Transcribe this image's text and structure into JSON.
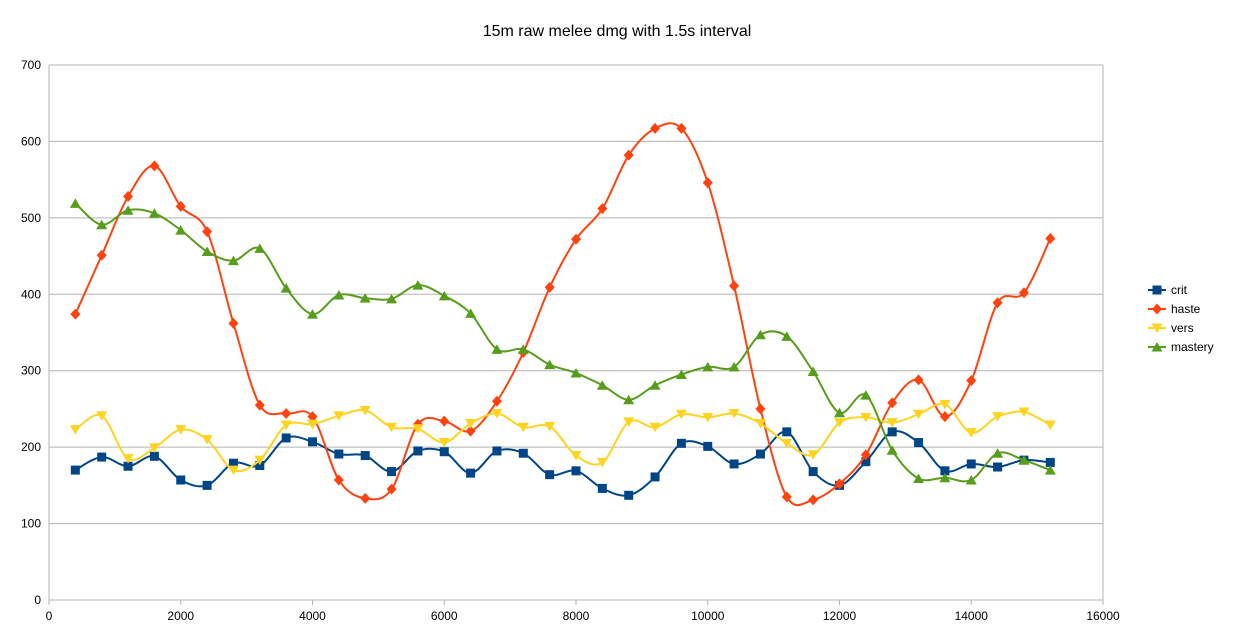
{
  "chart_data": {
    "type": "line",
    "title": "15m raw melee dmg with 1.5s interval",
    "xlabel": "",
    "ylabel": "",
    "xlim": [
      0,
      16000
    ],
    "ylim": [
      0,
      700
    ],
    "xticks": [
      0,
      2000,
      4000,
      6000,
      8000,
      10000,
      12000,
      14000,
      16000
    ],
    "yticks": [
      0,
      100,
      200,
      300,
      400,
      500,
      600,
      700
    ],
    "grid": true,
    "legend": "right",
    "x": [
      400,
      800,
      1200,
      1600,
      2000,
      2400,
      2800,
      3200,
      3600,
      4000,
      4400,
      4800,
      5200,
      5600,
      6000,
      6400,
      6800,
      7200,
      7600,
      8000,
      8400,
      8800,
      9200,
      9600,
      10000,
      10400,
      10800,
      11200,
      11600,
      12000,
      12400,
      12800,
      13200,
      13600,
      14000,
      14400,
      14800,
      15200
    ],
    "series": [
      {
        "name": "crit",
        "color": "#004586",
        "marker": "square",
        "values": [
          170,
          187,
          175,
          188,
          157,
          150,
          179,
          176,
          212,
          207,
          191,
          189,
          168,
          195,
          194,
          166,
          195,
          192,
          164,
          169,
          146,
          137,
          161,
          205,
          201,
          178,
          191,
          220,
          168,
          150,
          181,
          220,
          206,
          169,
          178,
          174,
          183,
          180
        ]
      },
      {
        "name": "haste",
        "color": "#ff420e",
        "marker": "diamond",
        "values": [
          374,
          451,
          528,
          568,
          515,
          482,
          362,
          255,
          244,
          240,
          157,
          133,
          145,
          230,
          234,
          221,
          260,
          324,
          409,
          472,
          512,
          582,
          617,
          617,
          546,
          411,
          250,
          135,
          131,
          152,
          190,
          258,
          288,
          240,
          287,
          389,
          402,
          473
        ]
      },
      {
        "name": "vers",
        "color": "#ffd320",
        "marker": "triangle-down",
        "values": [
          223,
          241,
          185,
          199,
          223,
          210,
          170,
          183,
          229,
          230,
          241,
          248,
          226,
          224,
          206,
          231,
          244,
          226,
          227,
          189,
          180,
          233,
          226,
          243,
          239,
          244,
          231,
          205,
          190,
          232,
          239,
          232,
          243,
          256,
          219,
          240,
          246,
          229
        ]
      },
      {
        "name": "mastery",
        "color": "#579d1c",
        "marker": "triangle-up",
        "values": [
          519,
          491,
          510,
          506,
          484,
          456,
          444,
          460,
          408,
          374,
          399,
          395,
          394,
          412,
          398,
          375,
          328,
          328,
          308,
          297,
          281,
          262,
          281,
          295,
          305,
          305,
          347,
          345,
          299,
          245,
          268,
          196,
          159,
          160,
          157,
          192,
          183,
          170
        ]
      }
    ]
  }
}
